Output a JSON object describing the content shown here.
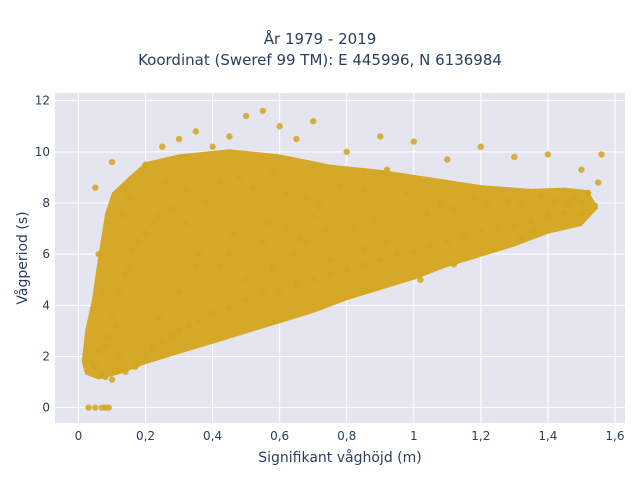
{
  "chart_data": {
    "type": "scatter",
    "title_lines": [
      "År 1979 - 2019",
      "Koordinat (Sweref 99 TM): E 445996, N 6136984"
    ],
    "xlabel": "Signifikant våghöjd (m)",
    "ylabel": "Vågperiod (s)",
    "xlim": [
      -0.07,
      1.63
    ],
    "ylim": [
      -0.6,
      12.3
    ],
    "xticks": [
      0,
      0.2,
      0.4,
      0.6,
      0.8,
      1,
      1.2,
      1.4,
      1.6
    ],
    "xtick_labels": [
      "0",
      "0,2",
      "0,4",
      "0,6",
      "0,8",
      "1",
      "1,2",
      "1,4",
      "1,6"
    ],
    "yticks": [
      0,
      2,
      4,
      6,
      8,
      10,
      12
    ],
    "ytick_labels": [
      "0",
      "2",
      "4",
      "6",
      "8",
      "10",
      "12"
    ],
    "grid": true,
    "legend": "none",
    "marker_color": "#d4a520",
    "background_color": "#e5e5f0",
    "grid_color": "#ffffff",
    "series": [
      {
        "x": [
          0.03,
          0.05,
          0.07,
          0.08,
          0.09,
          0.05,
          0.07,
          0.06,
          0.04,
          0.08,
          0.1,
          0.12,
          0.09,
          0.11,
          0.07,
          0.06,
          0.05,
          0.1,
          0.13,
          0.15,
          0.14,
          0.12,
          0.17,
          0.18,
          0.2,
          0.22,
          0.25,
          0.28,
          0.3,
          0.24,
          0.33,
          0.36,
          0.4,
          0.45,
          0.5,
          0.55,
          0.6,
          0.65,
          0.7,
          0.75,
          0.8,
          0.85,
          0.9,
          0.95,
          1.0,
          1.05,
          1.1,
          1.15,
          1.2,
          1.25,
          1.3,
          1.35,
          1.4,
          1.45,
          1.5,
          1.52,
          1.55,
          1.56,
          0.2,
          0.25,
          0.3,
          0.35,
          0.4,
          0.45,
          0.5,
          0.55,
          0.6,
          0.65,
          0.7,
          0.8,
          0.9,
          1.0,
          1.1,
          1.2,
          1.3,
          1.4,
          1.5,
          0.15,
          0.18,
          0.22,
          0.28,
          0.32,
          0.38,
          0.42,
          0.48,
          0.52,
          0.58,
          0.62,
          0.68,
          0.72,
          0.78,
          0.85,
          0.92,
          0.98,
          1.08,
          1.18,
          1.28,
          1.38,
          1.48,
          0.35,
          0.45,
          0.55,
          0.62,
          0.7,
          0.3,
          0.5,
          0.58,
          0.64,
          0.68,
          0.08,
          0.1,
          0.12,
          0.14,
          0.16,
          0.2,
          0.24,
          0.26,
          0.32,
          0.36,
          0.42,
          0.46,
          0.56,
          0.66,
          0.74,
          0.82,
          0.88,
          0.96,
          1.04,
          1.12,
          1.22,
          1.32,
          1.42,
          1.46,
          1.5,
          1.54,
          1.02,
          1.12,
          1.24,
          1.32,
          1.36,
          0.75,
          0.85,
          0.92
        ],
        "y": [
          0,
          0,
          0,
          0,
          0,
          1.6,
          1.3,
          2.2,
          1.8,
          1.2,
          1.1,
          1.5,
          2.8,
          3.2,
          4.5,
          6.0,
          8.6,
          9.6,
          7.5,
          8.2,
          1.4,
          2.0,
          1.6,
          1.8,
          2.0,
          2.3,
          2.6,
          2.8,
          3.0,
          3.5,
          3.2,
          3.4,
          3.7,
          3.9,
          4.2,
          4.5,
          4.6,
          4.8,
          5.0,
          5.2,
          5.4,
          5.6,
          5.8,
          6.0,
          6.1,
          6.3,
          6.5,
          6.7,
          6.9,
          7.0,
          7.1,
          7.3,
          7.5,
          7.6,
          8.0,
          8.4,
          8.8,
          9.9,
          9.5,
          10.2,
          10.5,
          10.8,
          10.2,
          10.6,
          11.4,
          11.6,
          11.0,
          10.5,
          11.2,
          10.0,
          10.6,
          10.4,
          9.7,
          10.2,
          9.8,
          9.9,
          9.3,
          5.5,
          6.5,
          7.2,
          7.8,
          8.5,
          8.0,
          8.8,
          9.0,
          8.6,
          9.2,
          8.4,
          8.2,
          7.9,
          8.7,
          8.5,
          9.3,
          8.4,
          8.0,
          8.2,
          8.1,
          8.3,
          8.2,
          5.5,
          6.0,
          6.5,
          7.0,
          7.5,
          4.5,
          5.0,
          5.5,
          6.0,
          6.5,
          2.4,
          3.5,
          4.5,
          5.2,
          6.2,
          6.8,
          7.5,
          8.8,
          7.2,
          6.0,
          5.5,
          6.8,
          7.2,
          6.6,
          6.9,
          7.0,
          7.3,
          7.5,
          7.6,
          7.8,
          7.9,
          8.0,
          8.1,
          8.0,
          7.6,
          7.9,
          5.0,
          5.6,
          6.2,
          6.6,
          6.9,
          5.8,
          6.2,
          6.5
        ]
      }
    ]
  }
}
